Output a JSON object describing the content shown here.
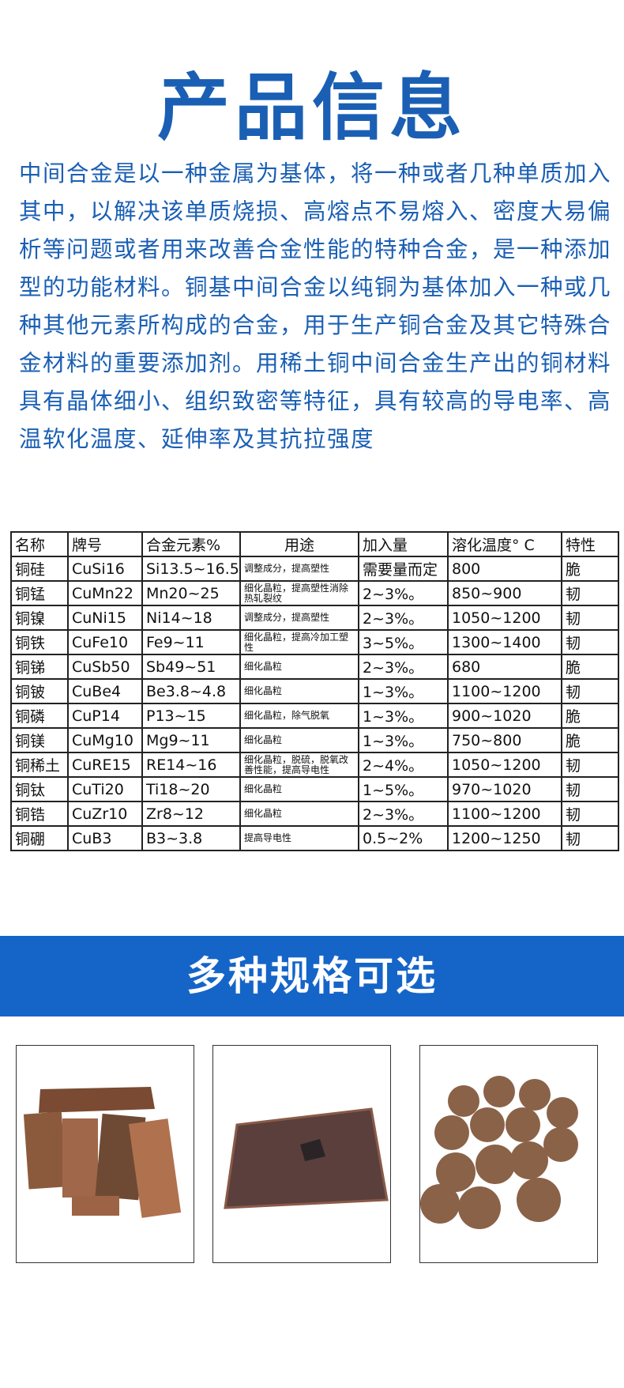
{
  "header": {
    "title": "产品信息"
  },
  "intro": "中间合金是以一种金属为基体，将一种或者几种单质加入其中，以解决该单质烧损、高熔点不易熔入、密度大易偏析等问题或者用来改善合金性能的特种合金，是一种添加型的功能材料。铜基中间合金以纯铜为基体加入一种或几种其他元素所构成的合金，用于生产铜合金及其它特殊合金材料的重要添加剂。用稀土铜中间合金生产出的铜材料具有晶体细小、组织致密等特征，具有较高的导电率、高温软化温度、延伸率及其抗拉强度",
  "table": {
    "columns": [
      "名称",
      "牌号",
      "合金元素%",
      "用途",
      "加入量",
      "溶化温度° C",
      "特性"
    ],
    "rows": [
      [
        "铜硅",
        "CuSi16",
        "Si13.5~16.5",
        "调整成分，提高塑性",
        "需要量而定",
        "800",
        "脆"
      ],
      [
        "铜锰",
        "CuMn22",
        "Mn20~25",
        "细化晶粒，提高塑性消除热轧裂纹",
        "2~3%。",
        "850~900",
        "韧"
      ],
      [
        "铜镍",
        "CuNi15",
        "Ni14~18",
        "调整成分，提高塑性",
        "2~3%。",
        "1050~1200",
        "韧"
      ],
      [
        "铜铁",
        "CuFe10",
        "Fe9~11",
        "细化晶粒，提高冷加工塑性",
        "3~5%。",
        "1300~1400",
        "韧"
      ],
      [
        "铜锑",
        "CuSb50",
        "Sb49~51",
        "细化晶粒",
        "2~3%。",
        "680",
        "脆"
      ],
      [
        "铜铍",
        "CuBe4",
        "Be3.8~4.8",
        "细化晶粒",
        "1~3%。",
        "1100~1200",
        "韧"
      ],
      [
        "铜磷",
        "CuP14",
        "P13~15",
        "细化晶粒，除气脱氧",
        "1~3%。",
        "900~1020",
        "脆"
      ],
      [
        "铜镁",
        "CuMg10",
        "Mg9~11",
        "细化晶粒",
        "1~3%。",
        "750~800",
        "脆"
      ],
      [
        "铜稀土",
        "CuRE15",
        "RE14~16",
        "细化晶粒，脱硫，脱氧改善性能，提高导电性",
        "2~4%。",
        "1050~1200",
        "韧"
      ],
      [
        "铜钛",
        "CuTi20",
        "Ti18~20",
        "细化晶粒",
        "1~5%。",
        "970~1020",
        "韧"
      ],
      [
        "铜锆",
        "CuZr10",
        "Zr8~12",
        "细化晶粒",
        "2~3%。",
        "1100~1200",
        "韧"
      ],
      [
        "铜硼",
        "CuB3",
        "B3~3.8",
        "提高导电性",
        "0.5~2%",
        "1200~1250",
        "韧"
      ]
    ]
  },
  "section": {
    "title": "多种规格可选"
  }
}
